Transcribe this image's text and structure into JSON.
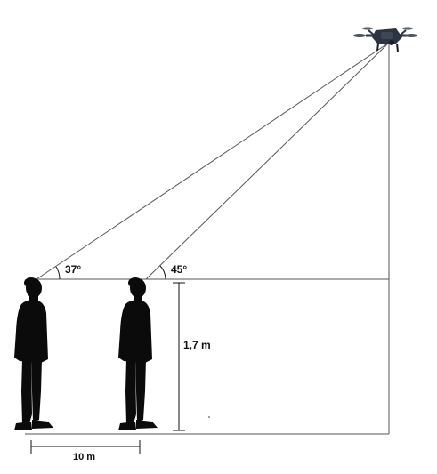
{
  "diagram": {
    "angle_left": "37°",
    "angle_right": "45°",
    "height_label": "1,7 m",
    "distance_label": "10 m"
  },
  "colors": {
    "line": "#555555",
    "dimension": "#111111",
    "silhouette": "#0b0b0b",
    "drone_body": "#2c3440",
    "background": "#ffffff"
  }
}
